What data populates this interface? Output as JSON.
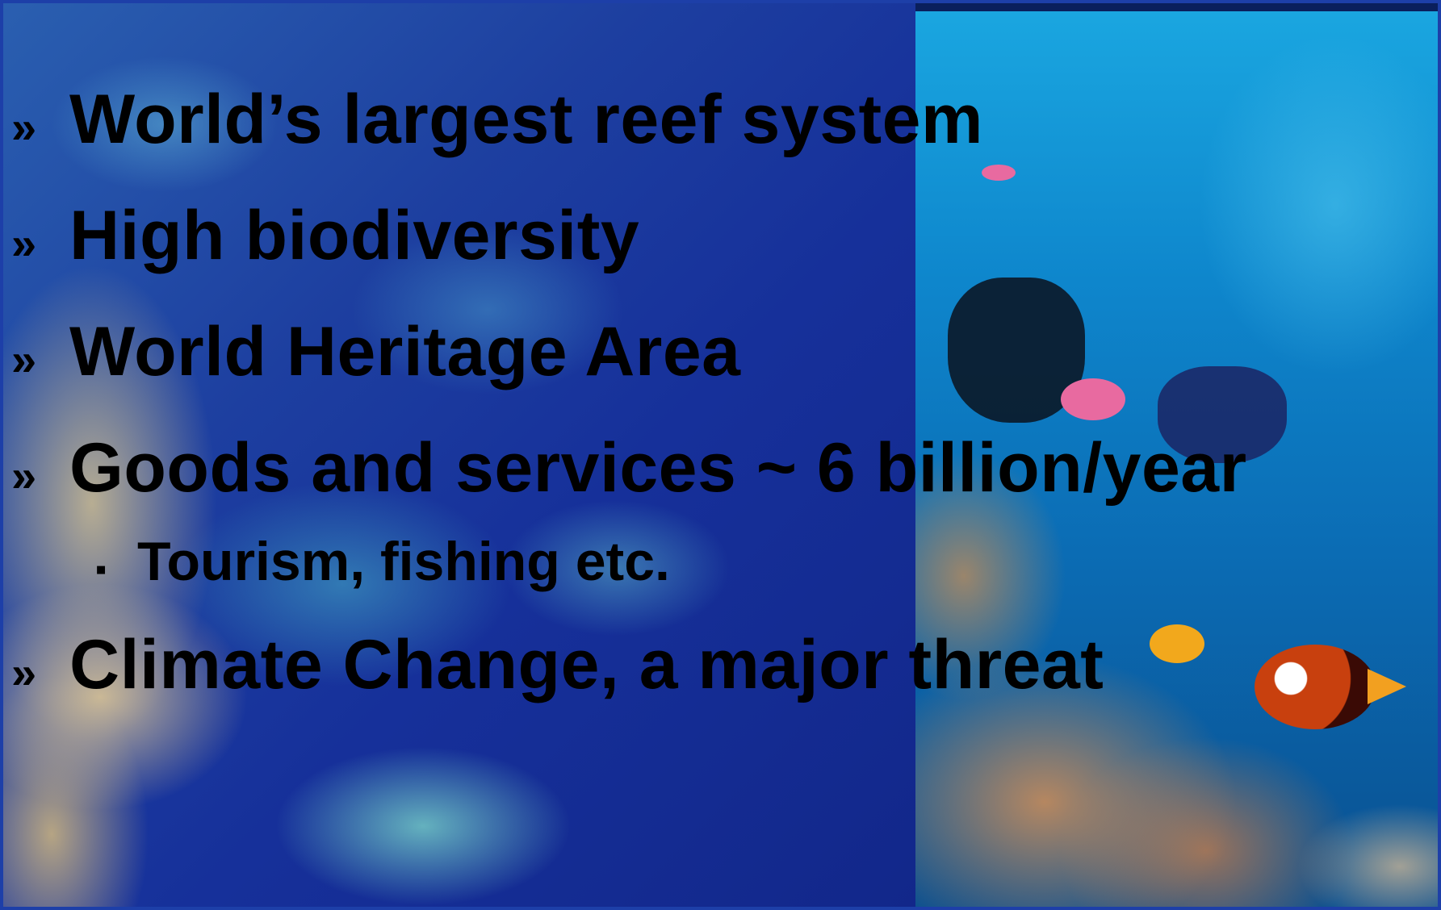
{
  "slide": {
    "bullets": [
      {
        "marker": "»",
        "text": "World’s largest reef system"
      },
      {
        "marker": "»",
        "text": "High biodiversity"
      },
      {
        "marker": "»",
        "text": "World Heritage Area"
      },
      {
        "marker": "»",
        "text": "Goods and services ~ 6 billion/year"
      },
      {
        "marker": "»",
        "text": "Climate Change, a major threat"
      }
    ],
    "sub_bullets": [
      {
        "marker": "▪",
        "text": "Tourism, fishing etc."
      }
    ]
  },
  "colors": {
    "text": "#000000",
    "border": "#1d3fa8",
    "satellite_ocean": "#16309a",
    "underwater_water": "#0e86cc"
  }
}
